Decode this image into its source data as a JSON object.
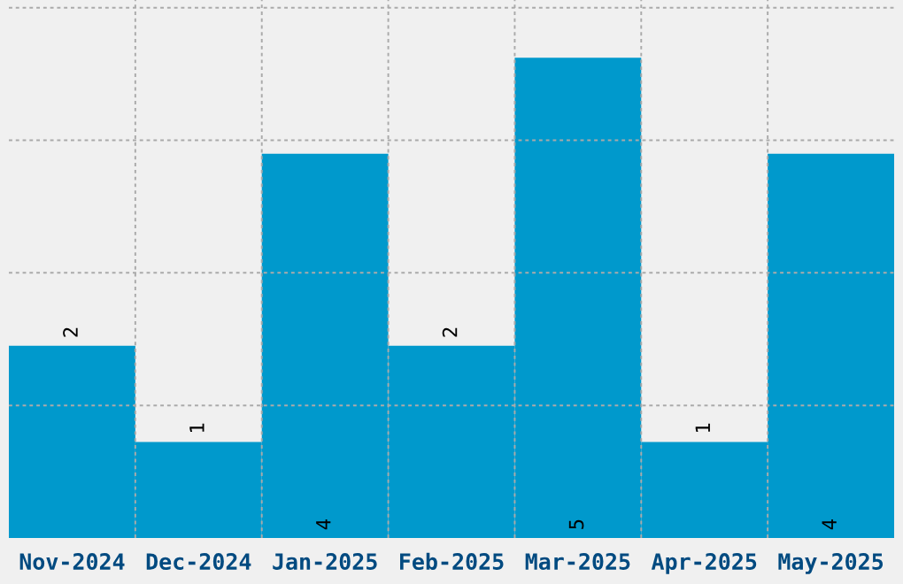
{
  "chart_data": {
    "type": "bar",
    "categories": [
      "Nov-2024",
      "Dec-2024",
      "Jan-2025",
      "Feb-2025",
      "Mar-2025",
      "Apr-2025",
      "May-2025"
    ],
    "values": [
      2,
      1,
      4,
      2,
      5,
      1,
      4
    ],
    "color": "#0099cc",
    "data_labels": true,
    "grid": true,
    "ylim": [
      0,
      5.6
    ],
    "yticks": [
      {
        "value": 1.38,
        "label": null
      },
      {
        "value": 2.76,
        "label": null
      },
      {
        "value": 4.14,
        "label": null
      },
      {
        "value": 5.52,
        "label": null
      }
    ],
    "tick_labels": "x"
  }
}
